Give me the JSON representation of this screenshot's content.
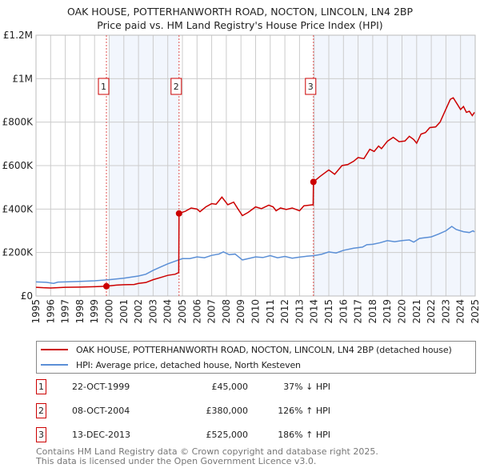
{
  "title": "OAK HOUSE, POTTERHANWORTH ROAD, NOCTON, LINCOLN, LN4 2BP",
  "subtitle": "Price paid vs. HM Land Registry's House Price Index (HPI)",
  "colors": {
    "property": "#cc0000",
    "hpi": "#5b8fd6",
    "shade": "#f2f6fd",
    "grid": "#cccccc"
  },
  "chart_data": {
    "type": "line",
    "title": "OAK HOUSE, POTTERHANWORTH ROAD, NOCTON, LINCOLN, LN4 2BP",
    "subtitle": "Price paid vs. HM Land Registry's House Price Index (HPI)",
    "xlim": [
      1995,
      2025
    ],
    "ylim": [
      0,
      1200000
    ],
    "grid": true,
    "y_ticks": [
      {
        "v": 0,
        "label": "£0"
      },
      {
        "v": 200000,
        "label": "£200K"
      },
      {
        "v": 400000,
        "label": "£400K"
      },
      {
        "v": 600000,
        "label": "£600K"
      },
      {
        "v": 800000,
        "label": "£800K"
      },
      {
        "v": 1000000,
        "label": "£1M"
      },
      {
        "v": 1200000,
        "label": "£1.2M"
      }
    ],
    "x_ticks": [
      "1995",
      "1996",
      "1997",
      "1998",
      "1999",
      "2000",
      "2001",
      "2002",
      "2003",
      "2004",
      "2005",
      "2006",
      "2007",
      "2008",
      "2009",
      "2010",
      "2011",
      "2012",
      "2013",
      "2014",
      "2015",
      "2016",
      "2017",
      "2018",
      "2019",
      "2020",
      "2021",
      "2022",
      "2023",
      "2024",
      "2025"
    ],
    "series": [
      {
        "name": "OAK HOUSE, POTTERHANWORTH ROAD, NOCTON, LINCOLN, LN4 2BP (detached house)",
        "color": "#cc0000",
        "points": [
          [
            1995,
            40000
          ],
          [
            1995.5,
            38000
          ],
          [
            1996,
            37000
          ],
          [
            1997,
            40000
          ],
          [
            1998,
            41000
          ],
          [
            1999,
            43000
          ],
          [
            1999.8,
            45000
          ],
          [
            2000.5,
            50000
          ],
          [
            2001,
            52000
          ],
          [
            2001.7,
            53000
          ],
          [
            2002,
            58000
          ],
          [
            2002.5,
            62000
          ],
          [
            2003,
            75000
          ],
          [
            2003.5,
            85000
          ],
          [
            2004,
            95000
          ],
          [
            2004.5,
            100000
          ],
          [
            2004.75,
            108000
          ],
          [
            2004.77,
            380000
          ],
          [
            2005.2,
            390000
          ],
          [
            2005.6,
            405000
          ],
          [
            2006,
            400000
          ],
          [
            2006.2,
            388000
          ],
          [
            2006.6,
            410000
          ],
          [
            2007,
            425000
          ],
          [
            2007.3,
            422000
          ],
          [
            2007.7,
            455000
          ],
          [
            2008.1,
            420000
          ],
          [
            2008.5,
            432000
          ],
          [
            2008.8,
            400000
          ],
          [
            2009.1,
            370000
          ],
          [
            2009.5,
            385000
          ],
          [
            2010,
            410000
          ],
          [
            2010.4,
            402000
          ],
          [
            2010.9,
            418000
          ],
          [
            2011.2,
            410000
          ],
          [
            2011.4,
            392000
          ],
          [
            2011.7,
            405000
          ],
          [
            2012.1,
            398000
          ],
          [
            2012.5,
            405000
          ],
          [
            2013,
            392000
          ],
          [
            2013.3,
            415000
          ],
          [
            2013.93,
            420000
          ],
          [
            2013.95,
            525000
          ],
          [
            2014.4,
            550000
          ],
          [
            2015,
            580000
          ],
          [
            2015.4,
            560000
          ],
          [
            2015.9,
            600000
          ],
          [
            2016.3,
            605000
          ],
          [
            2016.7,
            620000
          ],
          [
            2017,
            637000
          ],
          [
            2017.4,
            632000
          ],
          [
            2017.8,
            675000
          ],
          [
            2018.1,
            665000
          ],
          [
            2018.4,
            690000
          ],
          [
            2018.6,
            678000
          ],
          [
            2019,
            712000
          ],
          [
            2019.4,
            730000
          ],
          [
            2019.8,
            710000
          ],
          [
            2020.2,
            713000
          ],
          [
            2020.5,
            735000
          ],
          [
            2020.8,
            720000
          ],
          [
            2021,
            703000
          ],
          [
            2021.3,
            745000
          ],
          [
            2021.6,
            752000
          ],
          [
            2021.9,
            775000
          ],
          [
            2022.3,
            778000
          ],
          [
            2022.6,
            800000
          ],
          [
            2022.9,
            845000
          ],
          [
            2023.3,
            905000
          ],
          [
            2023.5,
            912000
          ],
          [
            2023.8,
            880000
          ],
          [
            2024,
            858000
          ],
          [
            2024.2,
            872000
          ],
          [
            2024.4,
            845000
          ],
          [
            2024.6,
            850000
          ],
          [
            2024.8,
            830000
          ],
          [
            2024.95,
            845000
          ]
        ]
      },
      {
        "name": "HPI: Average price, detached house, North Kesteven",
        "color": "#5b8fd6",
        "points": [
          [
            1995,
            65000
          ],
          [
            1995.7,
            63000
          ],
          [
            1996.2,
            58000
          ],
          [
            1996.5,
            64000
          ],
          [
            1997,
            65000
          ],
          [
            1998,
            67000
          ],
          [
            1999,
            70000
          ],
          [
            2000,
            75000
          ],
          [
            2001,
            82000
          ],
          [
            2002,
            92000
          ],
          [
            2002.5,
            100000
          ],
          [
            2003,
            118000
          ],
          [
            2003.5,
            133000
          ],
          [
            2004,
            148000
          ],
          [
            2004.7,
            165000
          ],
          [
            2005,
            172000
          ],
          [
            2005.5,
            172000
          ],
          [
            2006,
            180000
          ],
          [
            2006.5,
            176000
          ],
          [
            2007,
            187000
          ],
          [
            2007.5,
            193000
          ],
          [
            2007.8,
            203000
          ],
          [
            2008.2,
            190000
          ],
          [
            2008.6,
            193000
          ],
          [
            2009.1,
            166000
          ],
          [
            2009.5,
            172000
          ],
          [
            2010,
            180000
          ],
          [
            2010.5,
            177000
          ],
          [
            2011,
            186000
          ],
          [
            2011.5,
            176000
          ],
          [
            2012,
            182000
          ],
          [
            2012.5,
            174000
          ],
          [
            2013,
            179000
          ],
          [
            2013.5,
            183000
          ],
          [
            2014,
            186000
          ],
          [
            2014.5,
            192000
          ],
          [
            2015,
            203000
          ],
          [
            2015.5,
            198000
          ],
          [
            2016,
            210000
          ],
          [
            2016.7,
            220000
          ],
          [
            2017.3,
            225000
          ],
          [
            2017.6,
            236000
          ],
          [
            2018,
            238000
          ],
          [
            2018.5,
            245000
          ],
          [
            2019,
            255000
          ],
          [
            2019.5,
            250000
          ],
          [
            2020,
            255000
          ],
          [
            2020.5,
            258000
          ],
          [
            2020.8,
            248000
          ],
          [
            2021.2,
            265000
          ],
          [
            2022,
            272000
          ],
          [
            2022.5,
            285000
          ],
          [
            2023,
            300000
          ],
          [
            2023.4,
            320000
          ],
          [
            2023.7,
            306000
          ],
          [
            2024.2,
            296000
          ],
          [
            2024.6,
            292000
          ],
          [
            2024.85,
            300000
          ],
          [
            2024.95,
            295000
          ]
        ]
      }
    ],
    "sales": [
      {
        "n": "1",
        "x": 1999.81,
        "value": 45000
      },
      {
        "n": "2",
        "x": 2004.77,
        "value": 380000
      },
      {
        "n": "3",
        "x": 2013.95,
        "value": 525000
      }
    ],
    "shaded_ranges": [
      [
        2000,
        2004.77
      ],
      [
        2013.95,
        2025
      ]
    ]
  },
  "legend": {
    "property_label": "OAK HOUSE, POTTERHANWORTH ROAD, NOCTON, LINCOLN, LN4 2BP (detached house)",
    "hpi_label": "HPI: Average price, detached house, North Kesteven"
  },
  "sales_table": [
    {
      "n": "1",
      "date": "22-OCT-1999",
      "price": "£45,000",
      "hpi": "37% ↓ HPI"
    },
    {
      "n": "2",
      "date": "08-OCT-2004",
      "price": "£380,000",
      "hpi": "126% ↑ HPI"
    },
    {
      "n": "3",
      "date": "13-DEC-2013",
      "price": "£525,000",
      "hpi": "186% ↑ HPI"
    }
  ],
  "footer": {
    "line1": "Contains HM Land Registry data © Crown copyright and database right 2025.",
    "line2": "This data is licensed under the Open Government Licence v3.0."
  }
}
